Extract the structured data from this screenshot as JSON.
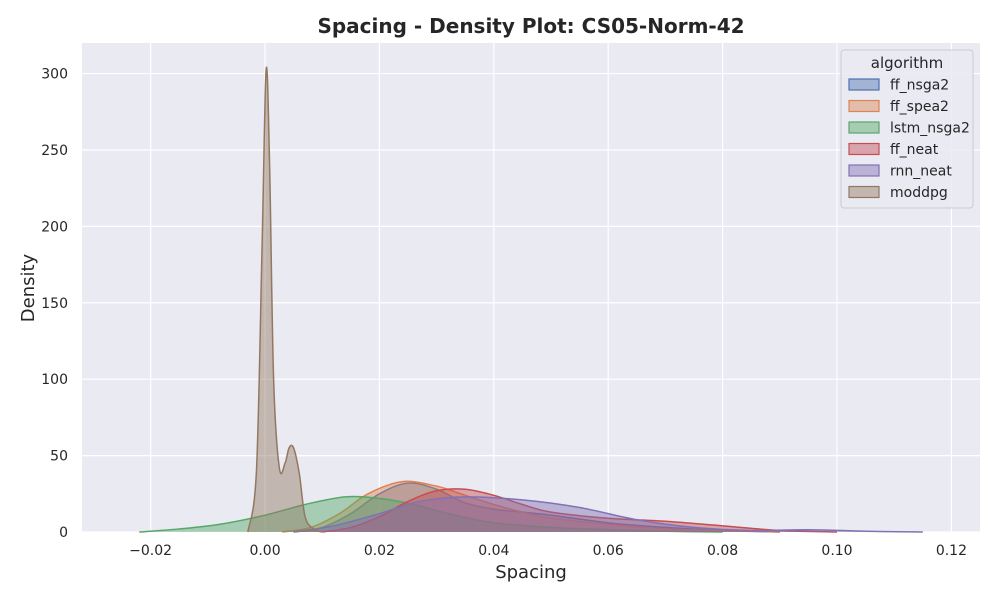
{
  "chart_data": {
    "type": "area",
    "title": "Spacing - Density Plot: CS05-Norm-42",
    "xlabel": "Spacing",
    "ylabel": "Density",
    "xlim": [
      -0.032,
      0.125
    ],
    "ylim": [
      0,
      320
    ],
    "xticks": [
      -0.02,
      0.0,
      0.02,
      0.04,
      0.06,
      0.08,
      0.1,
      0.12
    ],
    "xtick_labels": [
      "−0.02",
      "0.00",
      "0.02",
      "0.04",
      "0.06",
      "0.08",
      "0.10",
      "0.12"
    ],
    "yticks": [
      0,
      50,
      100,
      150,
      200,
      250,
      300
    ],
    "ytick_labels": [
      "0",
      "50",
      "100",
      "150",
      "200",
      "250",
      "300"
    ],
    "grid": true,
    "legend": {
      "title": "algorithm",
      "placement": "top-right"
    },
    "series": [
      {
        "name": "ff_nsga2",
        "color": "#4c72b0",
        "x": [
          0.005,
          0.01,
          0.015,
          0.02,
          0.025,
          0.03,
          0.035,
          0.04,
          0.045,
          0.05,
          0.06,
          0.07,
          0.08,
          0.09
        ],
        "y": [
          0,
          3,
          12,
          25,
          32,
          28,
          19,
          15,
          13,
          11,
          6,
          3,
          1,
          0
        ]
      },
      {
        "name": "ff_spea2",
        "color": "#dd8452",
        "x": [
          0.003,
          0.008,
          0.013,
          0.018,
          0.024,
          0.03,
          0.035,
          0.04,
          0.045,
          0.05,
          0.06,
          0.07,
          0.08,
          0.09
        ],
        "y": [
          0,
          3,
          12,
          25,
          33,
          30,
          24,
          18,
          13,
          9,
          5,
          2,
          1,
          0
        ]
      },
      {
        "name": "lstm_nsga2",
        "color": "#55a868",
        "x": [
          -0.022,
          -0.015,
          -0.008,
          0.0,
          0.007,
          0.014,
          0.02,
          0.026,
          0.032,
          0.04,
          0.05,
          0.06,
          0.07,
          0.08
        ],
        "y": [
          0,
          2,
          5,
          11,
          18,
          23,
          22,
          18,
          12,
          6,
          3,
          1.5,
          0.5,
          0
        ]
      },
      {
        "name": "ff_neat",
        "color": "#c44e52",
        "x": [
          0.01,
          0.015,
          0.02,
          0.025,
          0.03,
          0.035,
          0.04,
          0.045,
          0.05,
          0.06,
          0.07,
          0.08,
          0.09,
          0.1
        ],
        "y": [
          0,
          3,
          10,
          20,
          27,
          28,
          24,
          18,
          13,
          9,
          7,
          4,
          1,
          0
        ]
      },
      {
        "name": "rnn_neat",
        "color": "#8172b3",
        "x": [
          0.005,
          0.012,
          0.02,
          0.027,
          0.035,
          0.045,
          0.055,
          0.065,
          0.075,
          0.085,
          0.095,
          0.105,
          0.115
        ],
        "y": [
          0,
          4,
          12,
          20,
          23,
          21,
          16,
          8,
          3,
          1,
          1.5,
          0.5,
          0
        ]
      },
      {
        "name": "moddpg",
        "color": "#937860",
        "x": [
          -0.003,
          -0.0015,
          -0.0005,
          0.0002,
          0.0008,
          0.0015,
          0.0025,
          0.0035,
          0.0042,
          0.005,
          0.006,
          0.007,
          0.0085,
          0.01
        ],
        "y": [
          0,
          40,
          190,
          303,
          240,
          100,
          42,
          45,
          55,
          55,
          38,
          10,
          2,
          0
        ]
      }
    ]
  }
}
